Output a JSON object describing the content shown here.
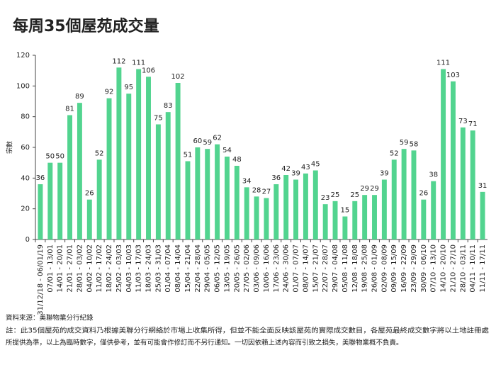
{
  "chart_data": {
    "type": "bar",
    "title": "每周35個屋苑成交量",
    "y_label": "宗數",
    "categories": [
      "31/12/18 - 06/01/19",
      "07/01 - 13/01",
      "14/01 - 20/01",
      "21/01 - 27/01",
      "28/01 - 03/02",
      "04/02 - 10/02",
      "11/02 - 17/02",
      "18/02 - 24/02",
      "25/02 - 03/03",
      "04/03 - 10/03",
      "11/03 - 17/03",
      "18/03 - 24/03",
      "25/03 - 31/03",
      "01/04 - 07/04",
      "08/04 - 14/04",
      "15/04 - 21/04",
      "22/04 - 28/04",
      "29/04 - 05/05",
      "06/05 - 12/05",
      "13/05 - 19/05",
      "20/05 - 26/05",
      "27/05 - 02/06",
      "03/06 - 09/06",
      "10/06 - 16/06",
      "17/06 - 23/06",
      "24/06 - 30/06",
      "01/07 - 07/07",
      "08/07 - 14/07",
      "15/07 - 21/07",
      "22/07 - 28/07",
      "29/07 - 04/08",
      "05/08 - 11/08",
      "12/08 - 18/08",
      "19/08 - 25/08",
      "26/08 - 01/09",
      "02/09 - 08/09",
      "09/09 - 15/09",
      "16/09 - 22/09",
      "23/09 - 29/09",
      "30/09 - 06/10",
      "07/10 - 13/10",
      "14/10 - 20/10",
      "21/10 - 27/10",
      "28/10 - 03/11",
      "04/11 - 10/11",
      "11/11 - 17/11"
    ],
    "values": [
      36,
      50,
      50,
      81,
      89,
      26,
      52,
      92,
      112,
      95,
      111,
      106,
      75,
      83,
      102,
      51,
      60,
      59,
      62,
      54,
      48,
      34,
      28,
      27,
      36,
      42,
      39,
      43,
      45,
      23,
      25,
      15,
      25,
      29,
      29,
      39,
      52,
      59,
      58,
      26,
      38,
      111,
      103,
      73,
      71,
      31
    ],
    "color": "#52d48f",
    "ylim": [
      0,
      120
    ],
    "yticks": [
      0,
      20,
      40,
      60,
      80,
      100,
      120
    ],
    "grid": false,
    "source": "資料來源：美聯物業分行紀錄",
    "notes": [
      "註：此35個屋苑的成交資料乃根據美聯分行網絡於市場上收集所得，但並不能全面反映該屋苑的實際成交數目，各屋苑最終成交數字將以土地註冊處",
      "所提供為準，以上為臨時數字，僅供參考，並有可能會作修訂而不另行通知。一切因依賴上述內容而引致之損失，美聯物業概不負責。"
    ]
  }
}
